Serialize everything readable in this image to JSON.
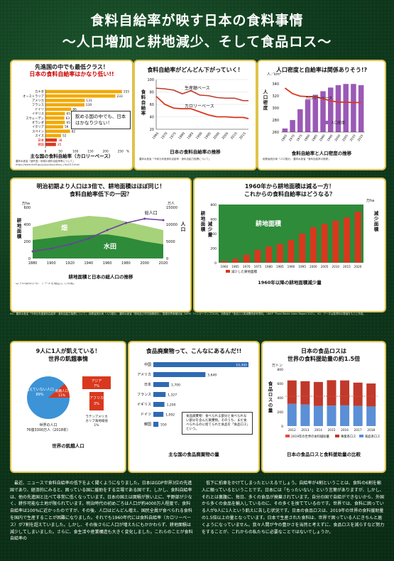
{
  "title": "食料自給率が映す日本の食料事情",
  "subtitle": "～人口増加と耕地減少、そして食品ロス～",
  "colors": {
    "accent": "#e0c24a",
    "orange": "#f2a900",
    "red": "#d9381e",
    "purple": "#9b59b6",
    "green": "#2e8b3a",
    "blue": "#3c93d6"
  },
  "panel1": {
    "title_line1": "先進国の中でも最低クラス！",
    "title_line2": "日本の食料自給率はかなり低い!!",
    "callout": "飲める国の中でも、日本はかなり少ない！",
    "caption": "主な国の食料自給率（カロリーベース）",
    "source": "農林水産省「諸外国・地域の食料自給率等について」https://www.maff.go.jp/j/zyukyu/zikyu_ritu/013.html",
    "chart_data": {
      "type": "bar",
      "orientation": "horizontal",
      "categories": [
        "カナダ",
        "オーストラリア",
        "アメリカ",
        "フランス",
        "ドイツ",
        "イギリス",
        "スウェーデン",
        "オランダ",
        "イタリア",
        "スペイン",
        "スイス",
        "日本",
        "韓国"
      ],
      "values": [
        255,
        233,
        131,
        130,
        86,
        65,
        63,
        65,
        59,
        82,
        52,
        38,
        35
      ],
      "highlight": [
        "日本",
        "韓国"
      ],
      "xticks": [
        0,
        50,
        100,
        150,
        200,
        250
      ],
      "xunit": "%"
    }
  },
  "panel2": {
    "title": "食料自給率がどんどん下がっていく！",
    "ylabel": "食料自給率",
    "label_prod": "生産額ベース",
    "label_cal": "カロリーベース",
    "caption": "日本の食料自給率の推移",
    "source": "農林水産省「令和元年度食料自給率・食料自給力指標について」",
    "chart_data": {
      "type": "line",
      "x": [
        1965,
        1970,
        1975,
        1980,
        1985,
        1990,
        1995,
        2000,
        2005,
        2010,
        2015,
        2018
      ],
      "series": [
        {
          "name": "生産額ベース",
          "values": [
            86,
            85,
            83,
            77,
            82,
            75,
            74,
            71,
            70,
            70,
            66,
            66
          ]
        },
        {
          "name": "カロリーベース",
          "values": [
            73,
            60,
            54,
            53,
            53,
            48,
            43,
            40,
            40,
            39,
            39,
            37
          ]
        }
      ],
      "yticks": [
        20,
        40,
        60,
        80,
        100
      ],
      "xticks": [
        "1965",
        "1970",
        "1975",
        "1980",
        "1985",
        "1990",
        "1995",
        "2000",
        "2005",
        "2010",
        "2015"
      ]
    }
  },
  "panel3": {
    "title": "人口密度と自給率は関係ありそう!?",
    "ylabel": "人口密度",
    "yunit": "人／km²",
    "label_rate": "カロリーベース",
    "legend": "人口密度",
    "caption": "食料自給率と人口密度の推移",
    "source": "総務省統計局「人口推計」 農林水産省「食料自給率の推移」",
    "chart_data": {
      "type": "bar",
      "x": [
        1965,
        1970,
        1975,
        1980,
        1985,
        1990,
        1995,
        2000,
        2005,
        2010,
        2015
      ],
      "values": [
        266,
        280,
        298,
        314,
        322,
        328,
        334,
        338,
        340,
        340,
        338
      ],
      "yticks": [
        260,
        280,
        300,
        320,
        340
      ]
    }
  },
  "panel4": {
    "title_line1": "明治初期より人口は3倍で、耕地面積はほぼ同じ！",
    "title_line2": "食料自給率低下の一因？",
    "ylabel_l": "耕地面積",
    "ylabel_r": "人口",
    "unit_l": "万ha",
    "unit_r": "万人",
    "label_hata": "畑",
    "label_suiden": "水田",
    "label_pop": "総人口",
    "caption": "耕地面積と日本の総人口の推移",
    "note": "以下の資料から、データを抽出して作成。",
    "chart_data": {
      "type": "area",
      "x": [
        1880,
        1900,
        1920,
        1940,
        1960,
        1980,
        2000,
        2020
      ],
      "yticks_l": [
        0,
        200,
        400,
        600
      ],
      "yticks_r": [
        0,
        5000,
        10000,
        15000
      ],
      "xticks": [
        "1880",
        "1900",
        "1920",
        "1940",
        "1960",
        "1980",
        "2000",
        "2020"
      ]
    }
  },
  "panel5": {
    "title_line1": "1960年から耕地面積は減る一方！",
    "title_line2": "これからの食料自給率はどうなる？",
    "ylabel_l": "耕地面積",
    "ylabel_r": "減少面積",
    "ylabel_l2": "減少量",
    "unit": "万ha",
    "label_area": "耕地面積",
    "legend": "減少した耕地面積",
    "caption": "1960年以降の耕地面積減少量",
    "chart_data": {
      "type": "bar",
      "x": [
        1960,
        1965,
        1970,
        1975,
        1980,
        1985,
        1990,
        1995,
        2000,
        2005,
        2010,
        2015,
        2020
      ],
      "values": [
        5,
        12,
        25,
        40,
        50,
        58,
        70,
        90,
        110,
        120,
        130,
        140,
        158
      ],
      "yticks": [
        0,
        200,
        400,
        600,
        800
      ]
    }
  },
  "panel6": {
    "title_line1": "9人に1人が飢えている！",
    "title_line2": "世界の飢餓事情",
    "pie_label_main": "飢えていない人口",
    "pie_label_pct": "89%",
    "hunger_label": "飢餓人口",
    "hunger_pct": "11%",
    "asia": "アジア",
    "asia_pct": "7%",
    "africa": "アフリカ",
    "africa_pct": "3%",
    "latin": "ラテンアメリカ",
    "latin2": "カリブ海地域他",
    "latin_pct": "1%",
    "world_pop": "世界の人口",
    "world_pop2": "76億3300万人（2018年）",
    "caption": "世界の飢餓人口",
    "chart_data": {
      "type": "pie",
      "categories": [
        "飢えていない人口",
        "飢餓人口"
      ],
      "values": [
        89,
        11
      ]
    }
  },
  "panel7": {
    "title": "食品廃棄物って、こんなにあるんだ!!",
    "callout": "食品廃棄物：食べられる部分と食べられない部分を含んだ廃棄物。そのうち、まだ食べられるのに捨てられた食品を「食品ロス」という。",
    "caption": "主な国の食品廃棄物の量",
    "chart_data": {
      "type": "bar",
      "orientation": "horizontal",
      "categories": [
        "中国",
        "アメリカ",
        "日本",
        "フランス",
        "イギリス",
        "ドイツ",
        "韓国"
      ],
      "values": [
        10300,
        5640,
        1700,
        1327,
        1200,
        1092,
        550
      ],
      "value_labels": [
        "10,300",
        "5,640",
        "1,700",
        "1,327",
        "1,200",
        "1,092",
        "550"
      ]
    }
  },
  "panel8": {
    "title_line1": "日本の食品ロスは",
    "title_line2": "世界の食料援助量の約1.5倍",
    "unit": "万トン",
    "ylabel": "食品ロスの量",
    "legend_1": "2019年の世界の食料援助量",
    "legend_2": "事業系ロス",
    "legend_3": "家庭系ロス",
    "caption": "日本の食品ロスと食料援助量の比較",
    "chart_data": {
      "type": "bar",
      "x": [
        "2012",
        "2013",
        "2014",
        "2015",
        "2016",
        "2017",
        "2018"
      ],
      "series": [
        {
          "name": "事業系ロス",
          "values": [
            331,
            330,
            339,
            357,
            352,
            328,
            324
          ]
        },
        {
          "name": "家庭系ロス",
          "values": [
            312,
            302,
            282,
            289,
            291,
            284,
            276
          ]
        }
      ],
      "aid": 420,
      "yticks": [
        0,
        200,
        400,
        600,
        800
      ]
    }
  },
  "notes": "※1：農林水産省「令和元年度食料自給率・食料自給力指標について」 総務省統計局「人口推計」 農林水産省「耕地及び作付面積統計」 国連世界食糧計画（WFP）「ハンガーマップ2018」 消費者庁「食品ロス削減関係参考資料」 UNEP「Food Waste Index Report 2021」 ※2：データは各資料の数値をもとに作成。",
  "body_left": "最近、ニュースで食料自給率の低下をよく聞くようになりました。日本はGDP世界3位の先進国であり、経済的にみると、困っている国に援助をする立場である国です。しかし、食料自給率は、他の先進国と比べて非常に低くなっています。日本の国土は面積が狭い上に、平野部が少なく、耕作可能な土地が限られています。明治時代の初めごろは人口が約4000万人程度で、食料自給率は100%に近かったのですが、その後、人口はどんどん増え、国民全員が食べられる食料を国内で生産することが困難になりました。それでも1960年代には食料自給率（カロリーベース）が7割を超えていました。しかし、その後さらに人口が増えたにもかかわらず、耕地面積は減少してしまいました。さらに、食生活や産業構造も大きく変化しました。これらのことが食料自給率の",
  "body_right": "低下に拍車をかけてしまったといえるでしょう。自給率が4割ということは、食料の6割を輸入に頼っているということです。日本には「もったいない」という言葉がありますが、しかし、それとは裏腹に、毎日、多くの食品が廃棄されています。自分の国で自給ができないから、外国から多くの食品を輸入しているのに、その多くを捨てているのです。世界では、食料に困っている人が9人に1人という飢えに苦しむ状況です。日本の食品ロスは、2019年の世界の食料援助量の1.5倍以上の量となっています。日本で生産された食料は、世界で困っている人にきちんと届くようになっていません。我々人間が今の豊かさを当然と考えずに、食品ロスを減らすなど努力をすることが、これからの私たちに必要なことではないでしょうか。"
}
